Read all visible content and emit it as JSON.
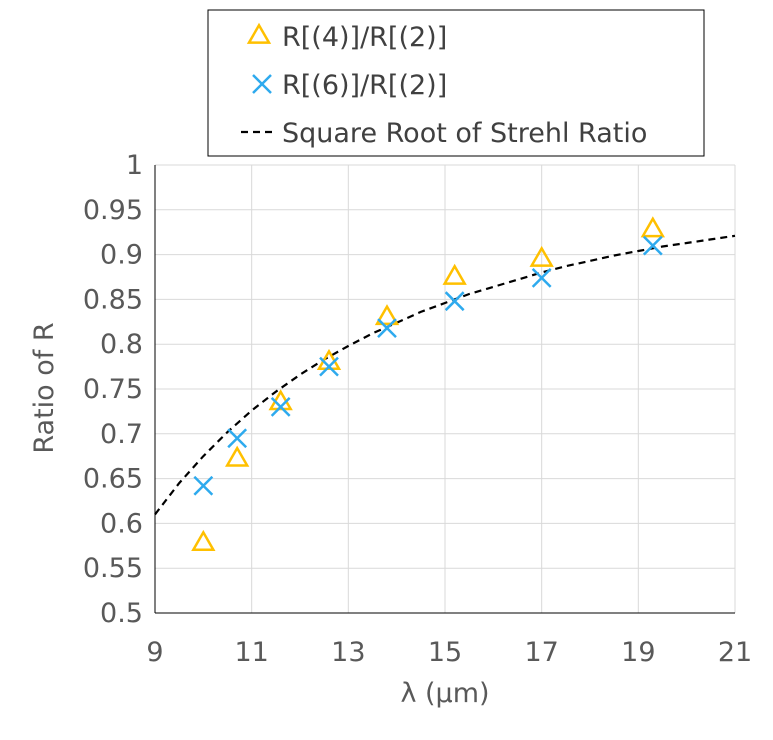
{
  "chart_data": {
    "type": "scatter",
    "title": "",
    "xlabel": "λ (μm)",
    "ylabel": "Ratio of R",
    "xlim": [
      9,
      21
    ],
    "ylim": [
      0.5,
      1
    ],
    "x_ticks": [
      "9",
      "11",
      "13",
      "15",
      "17",
      "19",
      "21"
    ],
    "y_ticks": [
      "0.5",
      "0.55",
      "0.6",
      "0.65",
      "0.7",
      "0.75",
      "0.8",
      "0.85",
      "0.9",
      "0.95",
      "1"
    ],
    "grid": true,
    "legend_position": "top",
    "series": [
      {
        "name": "R[(4)]/R[(2)]",
        "marker": "triangle",
        "color": "#FFC000",
        "x": [
          10.0,
          10.7,
          11.6,
          12.6,
          13.8,
          15.2,
          17.0,
          19.3
        ],
        "y": [
          0.578,
          0.672,
          0.735,
          0.78,
          0.83,
          0.875,
          0.895,
          0.928
        ]
      },
      {
        "name": "R[(6)]/R[(2)]",
        "marker": "x",
        "color": "#2EAAEE",
        "x": [
          10.0,
          10.7,
          11.6,
          12.6,
          13.8,
          15.2,
          17.0,
          19.3
        ],
        "y": [
          0.642,
          0.695,
          0.73,
          0.775,
          0.818,
          0.848,
          0.874,
          0.91
        ]
      },
      {
        "name": "Square Root of Strehl Ratio",
        "line_style": "dashed",
        "color": "#000000",
        "x": [
          9.0,
          9.5,
          10.0,
          10.5,
          11.0,
          11.5,
          12.0,
          12.5,
          13.0,
          13.5,
          14.0,
          14.5,
          15.0,
          15.5,
          16.0,
          16.5,
          17.0,
          17.5,
          18.0,
          18.5,
          19.0,
          19.5,
          20.0,
          20.5,
          21.0
        ],
        "y": [
          0.61,
          0.645,
          0.675,
          0.702,
          0.726,
          0.747,
          0.766,
          0.783,
          0.798,
          0.812,
          0.824,
          0.836,
          0.846,
          0.856,
          0.864,
          0.872,
          0.88,
          0.887,
          0.893,
          0.899,
          0.904,
          0.909,
          0.913,
          0.917,
          0.921
        ]
      }
    ]
  }
}
